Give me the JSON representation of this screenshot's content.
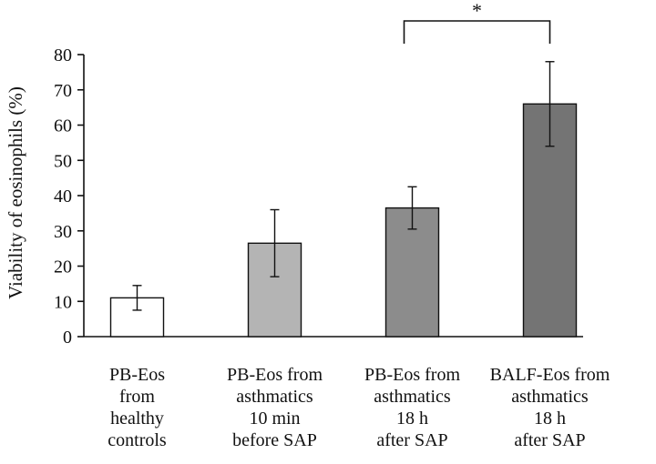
{
  "chart_data": {
    "type": "bar",
    "ylabel": "Viability of eosinophils (%)",
    "ylim": [
      0,
      80
    ],
    "yticks": [
      0,
      10,
      20,
      30,
      40,
      50,
      60,
      70,
      80
    ],
    "grid": false,
    "categories": [
      [
        "PB-Eos",
        "from",
        "healthy",
        "controls"
      ],
      [
        "PB-Eos from",
        "asthmatics",
        "10 min",
        "before SAP"
      ],
      [
        "PB-Eos from",
        "asthmatics",
        "18 h",
        "after SAP"
      ],
      [
        "BALF-Eos from",
        "asthmatics",
        "18 h",
        "after SAP"
      ]
    ],
    "values": [
      11,
      26.5,
      36.5,
      66
    ],
    "errors": [
      3.5,
      9.5,
      6,
      12
    ],
    "bar_colors": [
      "#ffffff",
      "#b4b4b4",
      "#8c8c8c",
      "#747474"
    ],
    "significance": {
      "from": 2,
      "to": 3,
      "label": "*"
    }
  }
}
